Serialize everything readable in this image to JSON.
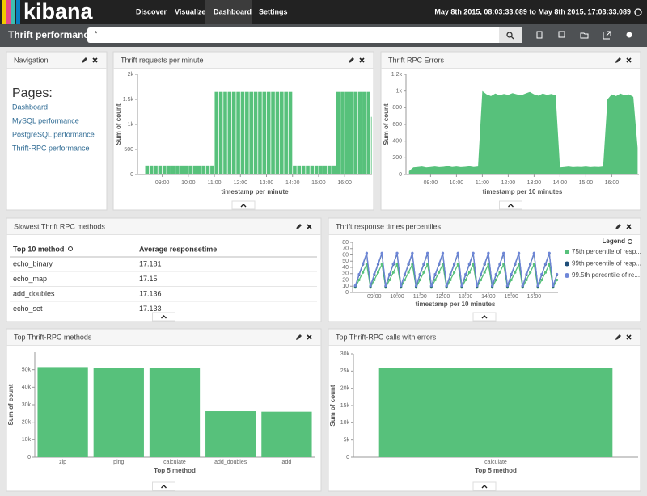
{
  "header": {
    "logo": "kibana",
    "nav": [
      "Discover",
      "Visualize",
      "Dashboard",
      "Settings"
    ],
    "time_range": "May 8th 2015, 08:03:33.089 to May 8th 2015, 17:03:33.089"
  },
  "toolbar": {
    "title": "Thrift performance",
    "query": "*"
  },
  "navigation": {
    "title": "Navigation",
    "heading": "Pages:",
    "links": [
      "Dashboard",
      "MySQL performance",
      "PostgreSQL performance",
      "Thrift-RPC performance"
    ]
  },
  "table": {
    "title": "Slowest Thrift RPC methods",
    "columns": [
      "Top 10 method",
      "Average responsetime"
    ],
    "rows": [
      [
        "echo_binary",
        17.181
      ],
      [
        "echo_map",
        17.15
      ],
      [
        "add_doubles",
        17.136
      ],
      [
        "echo_set",
        17.133
      ]
    ]
  },
  "chart_data": [
    {
      "type": "bar",
      "title": "Thrift requests per minute",
      "color": "#57c17b",
      "x": [
        "08:20",
        "08:30",
        "08:40",
        "08:50",
        "09:00",
        "09:10",
        "09:20",
        "09:30",
        "09:40",
        "09:50",
        "10:00",
        "10:10",
        "10:20",
        "10:30",
        "10:40",
        "10:50",
        "11:00",
        "11:10",
        "11:20",
        "11:30",
        "11:40",
        "11:50",
        "12:00",
        "12:10",
        "12:20",
        "12:30",
        "12:40",
        "12:50",
        "13:00",
        "13:10",
        "13:20",
        "13:30",
        "13:40",
        "13:50",
        "14:00",
        "14:10",
        "14:20",
        "14:30",
        "14:40",
        "14:50",
        "15:00",
        "15:10",
        "15:20",
        "15:30",
        "15:40",
        "15:50",
        "16:00",
        "16:10",
        "16:20",
        "16:30",
        "16:40",
        "16:50",
        "17:00"
      ],
      "values": [
        180,
        180,
        180,
        180,
        180,
        180,
        180,
        180,
        180,
        180,
        180,
        180,
        180,
        180,
        180,
        180,
        1650,
        1650,
        1650,
        1650,
        1650,
        1650,
        1650,
        1650,
        1650,
        1650,
        1650,
        1650,
        1650,
        1650,
        1650,
        1650,
        1650,
        1650,
        180,
        180,
        180,
        180,
        180,
        180,
        180,
        180,
        180,
        180,
        1650,
        1650,
        1650,
        1650,
        1650,
        1650,
        1650,
        1650,
        1150
      ],
      "xlim": [
        "08:03",
        "17:03"
      ],
      "xticks": [
        "09:00",
        "10:00",
        "11:00",
        "12:00",
        "13:00",
        "14:00",
        "15:00",
        "16:00"
      ],
      "ylim": [
        0,
        2000
      ],
      "yticks": [
        0,
        500,
        {
          "value": 1000,
          "label": "1k"
        },
        {
          "value": 1500,
          "label": "1.5k"
        },
        {
          "value": 2000,
          "label": "2k"
        }
      ],
      "xlabel": "timestamp per minute",
      "ylabel": "Sum of count"
    },
    {
      "type": "area",
      "title": "Thrift RPC Errors",
      "color": "#57c17b",
      "x": [
        "08:10",
        "08:20",
        "08:30",
        "08:40",
        "08:50",
        "09:00",
        "09:10",
        "09:20",
        "09:30",
        "09:40",
        "09:50",
        "10:00",
        "10:10",
        "10:20",
        "10:30",
        "10:40",
        "10:50",
        "11:00",
        "11:10",
        "11:20",
        "11:30",
        "11:40",
        "11:50",
        "12:00",
        "12:10",
        "12:20",
        "12:30",
        "12:40",
        "12:50",
        "13:00",
        "13:10",
        "13:20",
        "13:30",
        "13:40",
        "13:50",
        "14:00",
        "14:10",
        "14:20",
        "14:30",
        "14:40",
        "14:50",
        "15:00",
        "15:10",
        "15:20",
        "15:30",
        "15:40",
        "15:50",
        "16:00",
        "16:10",
        "16:20",
        "16:30",
        "16:40",
        "16:50",
        "17:00"
      ],
      "values": [
        40,
        85,
        90,
        95,
        85,
        90,
        95,
        88,
        92,
        100,
        90,
        95,
        88,
        92,
        98,
        90,
        95,
        1000,
        960,
        940,
        970,
        950,
        965,
        955,
        975,
        960,
        950,
        970,
        990,
        960,
        945,
        970,
        955,
        965,
        950,
        85,
        90,
        95,
        88,
        92,
        90,
        95,
        88,
        92,
        90,
        95,
        900,
        960,
        940,
        970,
        950,
        960,
        930,
        320
      ],
      "xlim": [
        "08:03",
        "17:03"
      ],
      "xticks": [
        "09:00",
        "10:00",
        "11:00",
        "12:00",
        "13:00",
        "14:00",
        "15:00",
        "16:00"
      ],
      "ylim": [
        0,
        1200
      ],
      "yticks": [
        0,
        200,
        400,
        600,
        800,
        {
          "value": 1000,
          "label": "1k"
        },
        {
          "value": 1200,
          "label": "1.2k"
        }
      ],
      "xlabel": "timestamp per 10 minutes",
      "ylabel": "Sum of count"
    },
    {
      "type": "line",
      "title": "Thrift response times percentiles",
      "legend_title": "Legend",
      "x": [
        "08:10",
        "08:20",
        "08:30",
        "08:40",
        "08:50",
        "09:00",
        "09:10",
        "09:20",
        "09:30",
        "09:40",
        "09:50",
        "10:00",
        "10:10",
        "10:20",
        "10:30",
        "10:40",
        "10:50",
        "11:00",
        "11:10",
        "11:20",
        "11:30",
        "11:40",
        "11:50",
        "12:00",
        "12:10",
        "12:20",
        "12:30",
        "12:40",
        "12:50",
        "13:00",
        "13:10",
        "13:20",
        "13:30",
        "13:40",
        "13:50",
        "14:00",
        "14:10",
        "14:20",
        "14:30",
        "14:40",
        "14:50",
        "15:00",
        "15:10",
        "15:20",
        "15:30",
        "15:40",
        "15:50",
        "16:00",
        "16:10",
        "16:20",
        "16:30",
        "16:40",
        "16:50",
        "17:00"
      ],
      "series": [
        {
          "name": "75th percentile of resp...",
          "color": "#57c17b",
          "values": [
            8,
            20,
            32,
            45,
            8,
            20,
            32,
            45,
            8,
            20,
            32,
            45,
            8,
            20,
            32,
            45,
            8,
            20,
            32,
            45,
            8,
            20,
            32,
            45,
            8,
            20,
            32,
            45,
            8,
            20,
            32,
            45,
            8,
            20,
            32,
            45,
            8,
            20,
            32,
            45,
            8,
            20,
            32,
            45,
            8,
            20,
            32,
            45,
            8,
            20,
            32,
            45,
            8,
            20
          ]
        },
        {
          "name": "99th percentile of resp...",
          "color": "#1f4e79",
          "values": [
            10,
            28,
            45,
            62,
            10,
            28,
            45,
            62,
            10,
            28,
            45,
            62,
            10,
            28,
            45,
            62,
            10,
            28,
            45,
            62,
            10,
            28,
            45,
            62,
            10,
            28,
            45,
            62,
            10,
            28,
            45,
            62,
            10,
            28,
            45,
            62,
            10,
            28,
            45,
            62,
            10,
            28,
            45,
            62,
            10,
            28,
            45,
            62,
            10,
            28,
            45,
            62,
            10,
            28
          ]
        },
        {
          "name": "99.5th percentile of re...",
          "color": "#6f87d8",
          "values": [
            11,
            29,
            46,
            63,
            11,
            29,
            46,
            63,
            11,
            29,
            46,
            63,
            11,
            29,
            46,
            63,
            11,
            29,
            46,
            63,
            11,
            29,
            46,
            63,
            11,
            29,
            46,
            63,
            11,
            29,
            46,
            63,
            11,
            29,
            46,
            63,
            11,
            29,
            46,
            63,
            11,
            29,
            46,
            63,
            11,
            29,
            46,
            63,
            11,
            29,
            46,
            63,
            11,
            29
          ]
        }
      ],
      "xlim": [
        "08:03",
        "17:03"
      ],
      "xticks": [
        "09:00",
        "10:00",
        "11:00",
        "12:00",
        "13:00",
        "14:00",
        "15:00",
        "16:00"
      ],
      "ylim": [
        0,
        80
      ],
      "yticks": [
        0,
        10,
        20,
        30,
        40,
        50,
        60,
        70,
        80
      ],
      "xlabel": "timestamp per 10 minutes"
    },
    {
      "type": "bar",
      "title": "Top Thrift-RPC methods",
      "color": "#57c17b",
      "categories": [
        "zip",
        "ping",
        "calculate",
        "add_doubles",
        "add"
      ],
      "values": [
        51500,
        51200,
        51000,
        26300,
        26000
      ],
      "ylim": [
        0,
        60000
      ],
      "yticks": [
        0,
        {
          "value": 10000,
          "label": "10k"
        },
        {
          "value": 20000,
          "label": "20k"
        },
        {
          "value": 30000,
          "label": "30k"
        },
        {
          "value": 40000,
          "label": "40k"
        },
        {
          "value": 50000,
          "label": "50k"
        }
      ],
      "xlabel": "Top 5 method",
      "ylabel": "Sum of count"
    },
    {
      "type": "bar",
      "title": "Top Thrift-RPC calls with errors",
      "color": "#57c17b",
      "categories": [
        "calculate"
      ],
      "values": [
        25800
      ],
      "ylim": [
        0,
        30000
      ],
      "yticks": [
        0,
        {
          "value": 5000,
          "label": "5k"
        },
        {
          "value": 10000,
          "label": "10k"
        },
        {
          "value": 15000,
          "label": "15k"
        },
        {
          "value": 20000,
          "label": "20k"
        },
        {
          "value": 25000,
          "label": "25k"
        },
        {
          "value": 30000,
          "label": "30k"
        }
      ],
      "xlabel": "Top 5 method",
      "ylabel": "Sum of count"
    }
  ]
}
